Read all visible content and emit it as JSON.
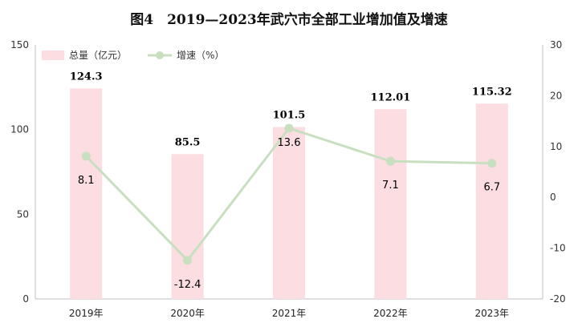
{
  "chart_data": {
    "type": "bar+line",
    "title": "图4　2019—2023年武穴市全部工业增加值及增速",
    "categories": [
      "2019年",
      "2020年",
      "2021年",
      "2022年",
      "2023年"
    ],
    "series": [
      {
        "name": "总量（亿元）",
        "type": "bar",
        "axis": "left",
        "color": "#fbdde2",
        "values": [
          124.3,
          85.5,
          101.5,
          112.01,
          115.32
        ],
        "labels": [
          "124.3",
          "85.5",
          "101.5",
          "112.01",
          "115.32"
        ]
      },
      {
        "name": "增速（%）",
        "type": "line",
        "axis": "right",
        "color": "#c8dfc0",
        "values": [
          8.1,
          -12.4,
          13.6,
          7.1,
          6.7
        ],
        "labels": [
          "8.1",
          "-12.4",
          "13.6",
          "7.1",
          "6.7"
        ]
      }
    ],
    "y_left": {
      "min": 0,
      "max": 150,
      "ticks": [
        "0",
        "50",
        "100",
        "150"
      ],
      "tick_values": [
        0,
        50,
        100,
        150
      ]
    },
    "y_right": {
      "min": -20,
      "max": 30,
      "ticks": [
        "-20",
        "-10",
        "0",
        "10",
        "20",
        "30"
      ],
      "tick_values": [
        -20,
        -10,
        0,
        10,
        20,
        30
      ]
    },
    "grid": false,
    "legend_position": "top-left"
  }
}
